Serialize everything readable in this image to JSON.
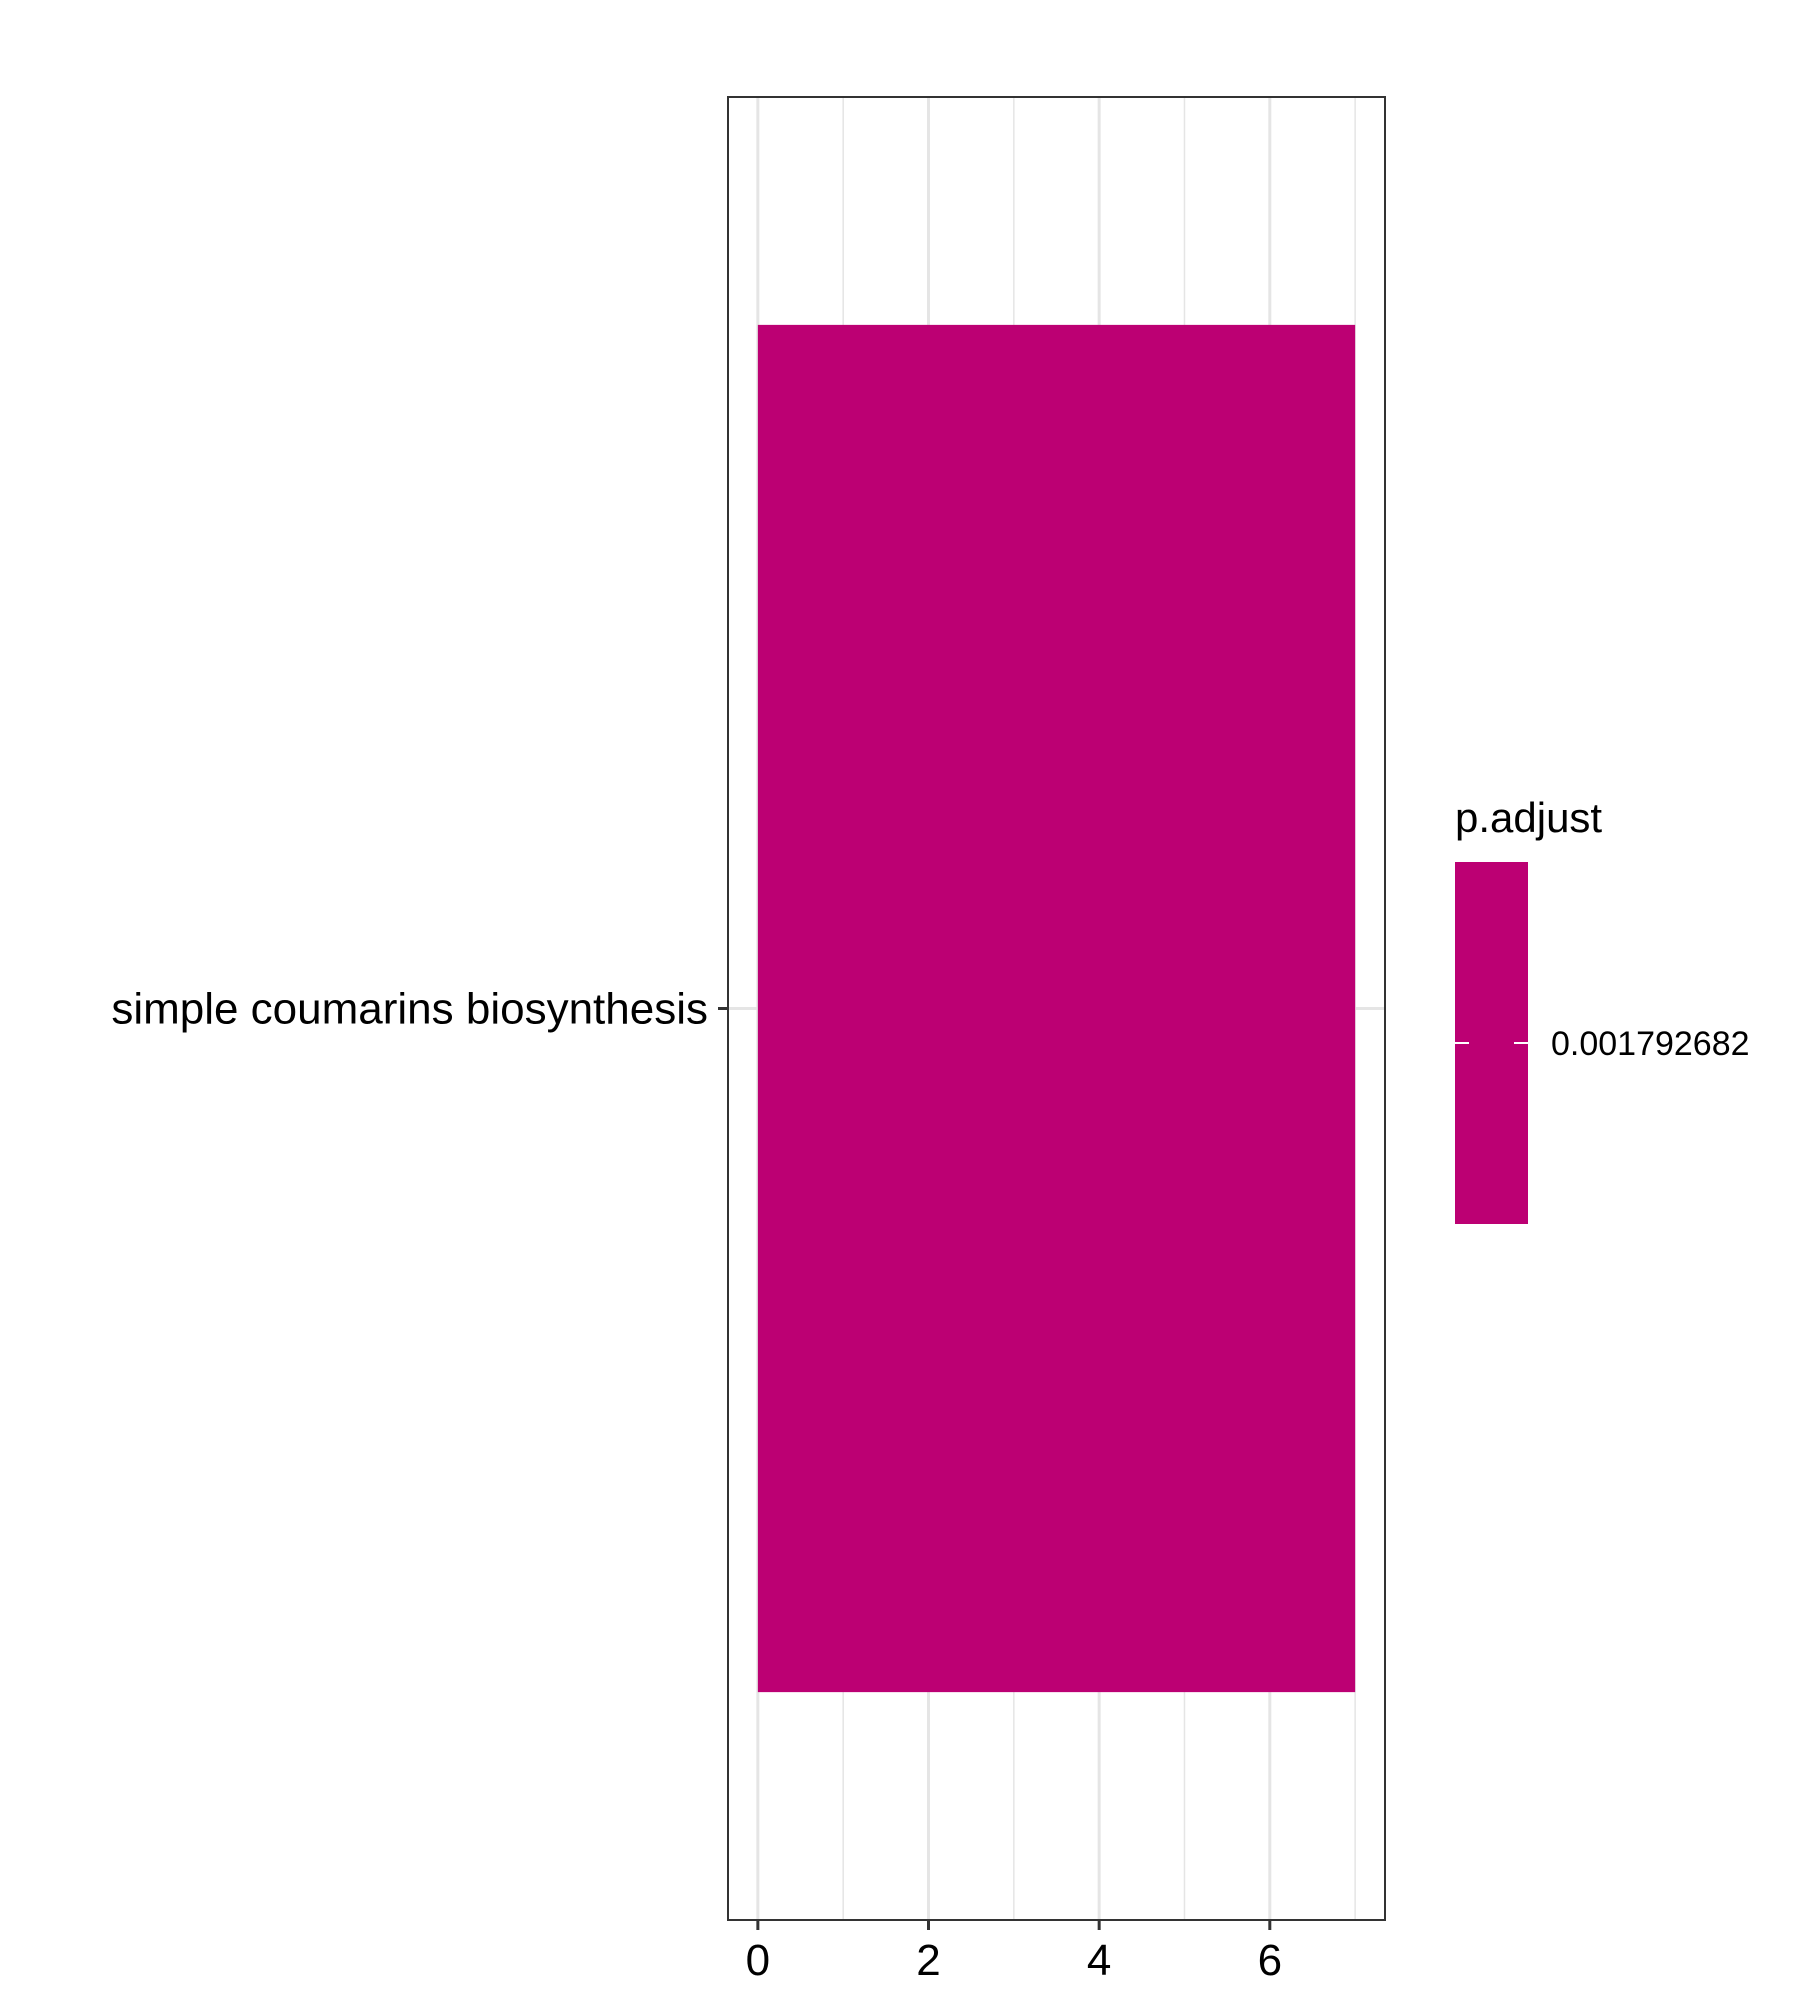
{
  "chart_data": {
    "type": "bar",
    "orientation": "horizontal",
    "categories": [
      "simple coumarins biosynthesis"
    ],
    "values": [
      7
    ],
    "xlim": [
      -0.35,
      7.35
    ],
    "x_ticks": [
      0,
      2,
      4,
      6
    ],
    "x_minor_ticks": [
      1,
      3,
      5,
      7
    ],
    "grid": true,
    "legend": {
      "title": "p.adjust",
      "position": "right",
      "breaks": [
        {
          "value": 0.001792682,
          "label": "0.001792682"
        }
      ]
    },
    "colors": {
      "bar": "#BC0073",
      "grid": "#E5E5E5",
      "panel_border": "#333333"
    }
  }
}
